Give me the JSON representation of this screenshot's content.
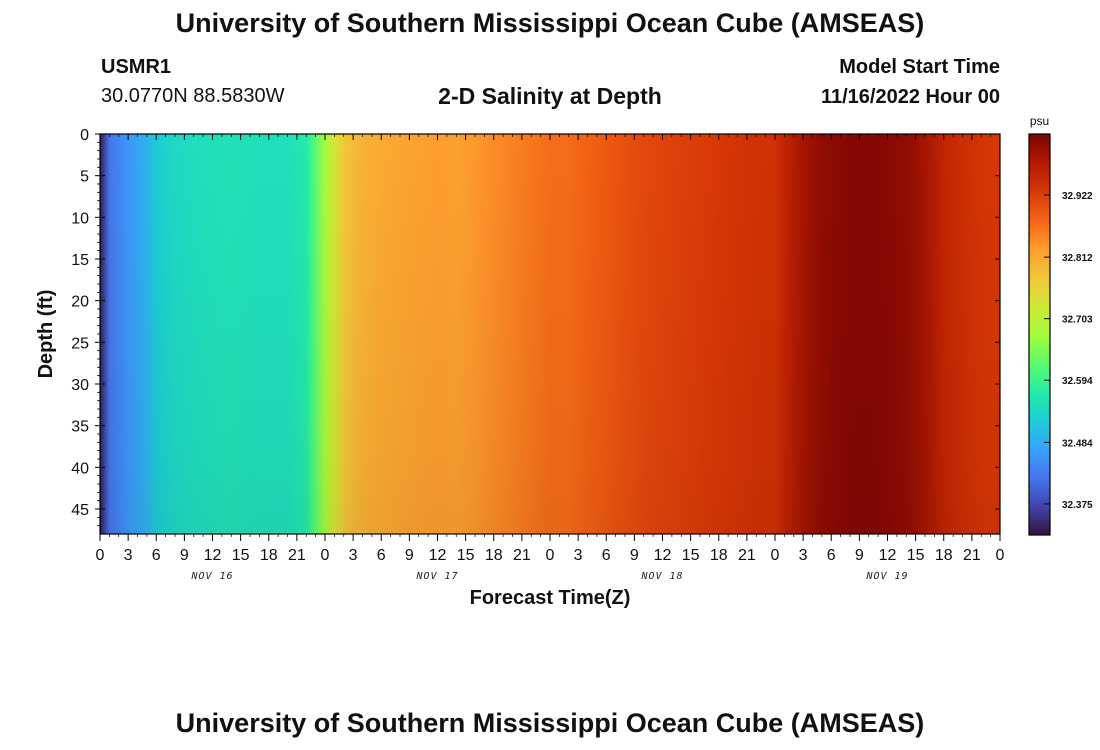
{
  "header": {
    "title": "University of Southern Mississippi Ocean Cube (AMSEAS)",
    "station_id": "USMR1",
    "station_coords": "30.0770N  88.5830W",
    "subtitle": "2-D Salinity at Depth",
    "model_start_label": "Model Start Time",
    "model_start_value": "11/16/2022 Hour 00"
  },
  "footer": {
    "title": "University of Southern Mississippi Ocean Cube (AMSEAS)"
  },
  "chart_data": {
    "type": "heatmap",
    "title": "2-D Salinity at Depth",
    "xlabel": "Forecast Time(Z)",
    "ylabel": "Depth (ft)",
    "x_unit": "hours since 11/16/2022 00Z",
    "x_range": [
      0,
      96
    ],
    "y_range": [
      0,
      48
    ],
    "y_inverted": true,
    "x_tick_labels": [
      "0",
      "3",
      "6",
      "9",
      "12",
      "15",
      "18",
      "21",
      "0",
      "3",
      "6",
      "9",
      "12",
      "15",
      "18",
      "21",
      "0",
      "3",
      "6",
      "9",
      "12",
      "15",
      "18",
      "21",
      "0",
      "3",
      "6",
      "9",
      "12",
      "15",
      "18",
      "21",
      "0"
    ],
    "y_ticks": [
      0,
      5,
      10,
      15,
      20,
      25,
      30,
      35,
      40,
      45
    ],
    "date_labels": [
      "NOV 16",
      "NOV 17",
      "NOV 18",
      "NOV 19"
    ],
    "colorbar": {
      "unit": "psu",
      "range": [
        32.32,
        33.03
      ],
      "tick_values": [
        32.375,
        32.484,
        32.594,
        32.703,
        32.812,
        32.922
      ],
      "tick_labels": [
        "32.375",
        "32.484",
        "32.594",
        "32.703",
        "32.812",
        "32.922"
      ],
      "colors": [
        "#30123b",
        "#4145ab",
        "#4675ed",
        "#39a2fc",
        "#1bcfd4",
        "#24eca6",
        "#61fc6c",
        "#a4fc3b",
        "#d1e834",
        "#f3c63a",
        "#fe9b2d",
        "#f36315",
        "#d93806",
        "#b11901",
        "#7a0403"
      ]
    },
    "salinity_by_time": {
      "hours": [
        0,
        1,
        3,
        5,
        6,
        8,
        11,
        14,
        17,
        20,
        22,
        23,
        24,
        25,
        26,
        27,
        28,
        30,
        32,
        34,
        36,
        38,
        40,
        42,
        44,
        46,
        48,
        50,
        52,
        54,
        56,
        58,
        60,
        62,
        64,
        66,
        68,
        70,
        72,
        73,
        75,
        77,
        80,
        83,
        86,
        88,
        90,
        92,
        94,
        96
      ],
      "values": [
        32.33,
        32.42,
        32.46,
        32.49,
        32.52,
        32.54,
        32.55,
        32.555,
        32.55,
        32.55,
        32.57,
        32.62,
        32.68,
        32.73,
        32.77,
        32.79,
        32.8,
        32.81,
        32.815,
        32.82,
        32.825,
        32.82,
        32.83,
        32.84,
        32.85,
        32.86,
        32.87,
        32.87,
        32.88,
        32.89,
        32.9,
        32.91,
        32.915,
        32.92,
        32.925,
        32.93,
        32.935,
        32.94,
        32.94,
        32.96,
        32.99,
        33.01,
        33.02,
        33.02,
        33.01,
        32.99,
        32.96,
        32.945,
        32.935,
        32.93
      ]
    }
  }
}
